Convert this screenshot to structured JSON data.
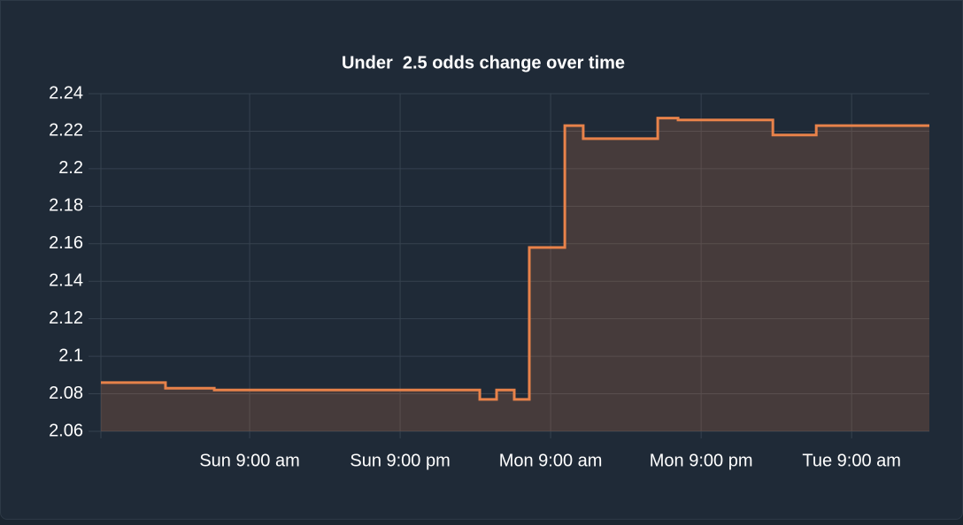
{
  "chart_data": {
    "type": "step-area",
    "title": "Under  2.5 odds change over time",
    "x": [
      -2.86,
      2.29,
      6.18,
      27.35,
      28.69,
      30.1,
      31.3,
      34.13,
      35.6,
      41.54,
      43.16,
      50.72,
      54.18,
      63.2
    ],
    "series": [
      {
        "color": "#e8824a",
        "values": [
          2.086,
          2.083,
          2.082,
          2.077,
          2.082,
          2.077,
          2.158,
          2.223,
          2.216,
          2.227,
          2.226,
          2.218,
          2.223,
          2.223
        ]
      }
    ],
    "xlim": [
      -2.86,
      63.2
    ],
    "xticks": [
      {
        "value": 9,
        "label": "Sun 9:00 am"
      },
      {
        "value": 21,
        "label": "Sun 9:00 pm"
      },
      {
        "value": 33,
        "label": "Mon 9:00 am"
      },
      {
        "value": 45,
        "label": "Mon 9:00 pm"
      },
      {
        "value": 57,
        "label": "Tue 9:00 am"
      }
    ],
    "ylim": [
      2.06,
      2.24
    ],
    "yticks": [
      2.06,
      2.08,
      2.1,
      2.12,
      2.14,
      2.16,
      2.18,
      2.2,
      2.22,
      2.24
    ],
    "grid": true
  }
}
